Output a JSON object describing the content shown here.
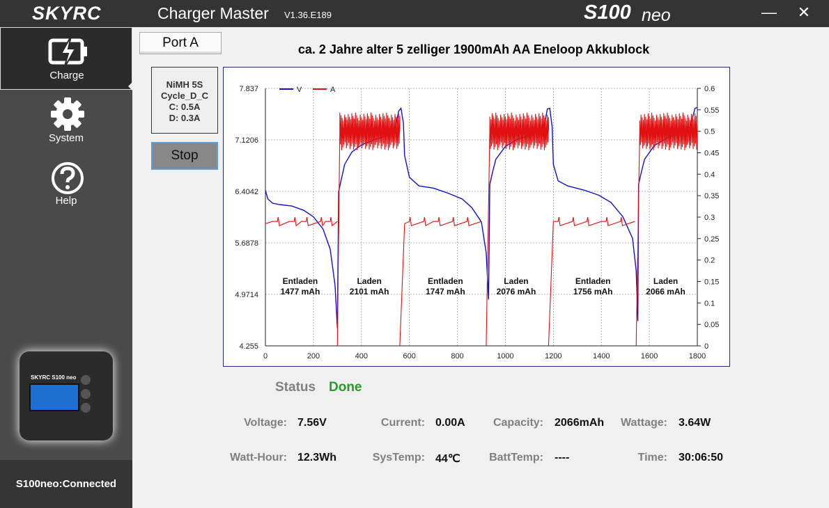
{
  "titlebar": {
    "logo": "SKYRC",
    "app_title": "Charger Master",
    "version": "V1.36.E189",
    "model_main": "S100",
    "model_suffix": "neo",
    "minimize_symbol": "—",
    "close_symbol": "✕"
  },
  "sidebar": {
    "items": [
      {
        "label": "Charge",
        "icon": "battery-charge-icon",
        "selected": true
      },
      {
        "label": "System",
        "icon": "gear-icon"
      },
      {
        "label": "Help",
        "icon": "help-icon"
      }
    ],
    "device_brand": "SKYRC S100 neo",
    "connection": "S100neo:Connected"
  },
  "main": {
    "tab": "Port A",
    "chart_title": "ca. 2 Jahre alter 5 zelliger 1900mAh AA Eneloop Akkublock",
    "program": {
      "line1": "NiMH 5S",
      "line2": "Cycle_D_C",
      "line3": "C: 0.5A",
      "line4": "D: 0.3A"
    },
    "stop_label": "Stop",
    "status_label": "Status",
    "status_value": "Done",
    "stats": [
      {
        "label": "Voltage:",
        "value": "7.56V"
      },
      {
        "label": "Current:",
        "value": "0.00A"
      },
      {
        "label": "Capacity:",
        "value": "2066mAh"
      },
      {
        "label": "Wattage:",
        "value": "3.64W"
      },
      {
        "label": "Watt-Hour:",
        "value": "12.3Wh"
      },
      {
        "label": "SysTemp:",
        "value": "44℃"
      },
      {
        "label": "BattTemp:",
        "value": "----"
      },
      {
        "label": "Time:",
        "value": "30:06:50"
      }
    ]
  },
  "chart_data": {
    "type": "line",
    "x_ticks": [
      "0",
      "200",
      "400",
      "600",
      "800",
      "1000",
      "1200",
      "1400",
      "1600",
      "1800"
    ],
    "xlim": [
      0,
      1800
    ],
    "y_left_ticks": [
      "4.255",
      "4.9714",
      "5.6878",
      "6.4042",
      "7.1206",
      "7.837"
    ],
    "y_left_lim": [
      4.255,
      7.837
    ],
    "y_right_ticks": [
      "0",
      "0.05",
      "0.1",
      "0.15",
      "0.2",
      "0.25",
      "0.3",
      "0.35",
      "0.4",
      "0.45",
      "0.5",
      "0.55",
      "0.6"
    ],
    "y_right_lim": [
      0,
      0.6
    ],
    "grid": true,
    "legend_position": "top-left",
    "series": [
      {
        "name": "V",
        "axis": "left",
        "color": "#1010d0",
        "x": [
          0,
          10,
          30,
          60,
          110,
          160,
          200,
          240,
          270,
          290,
          300,
          305,
          315,
          330,
          360,
          400,
          450,
          500,
          540,
          555,
          565,
          575,
          580,
          600,
          640,
          700,
          760,
          820,
          860,
          900,
          920,
          930,
          935,
          945,
          960,
          1000,
          1050,
          1110,
          1160,
          1175,
          1185,
          1195,
          1200,
          1220,
          1260,
          1330,
          1390,
          1440,
          1490,
          1530,
          1545,
          1552,
          1555,
          1565,
          1580,
          1620,
          1670,
          1720,
          1770,
          1790,
          1800
        ],
        "y": [
          6.42,
          6.3,
          6.24,
          6.22,
          6.2,
          6.14,
          6.05,
          5.88,
          5.6,
          5.1,
          4.5,
          6.4,
          6.55,
          6.78,
          6.95,
          7.05,
          7.12,
          7.17,
          7.25,
          7.52,
          7.56,
          7.35,
          6.9,
          6.6,
          6.48,
          6.45,
          6.38,
          6.3,
          6.18,
          5.98,
          5.55,
          4.9,
          6.5,
          6.65,
          6.85,
          7.03,
          7.13,
          7.19,
          7.28,
          7.55,
          7.56,
          7.3,
          6.78,
          6.55,
          6.48,
          6.42,
          6.35,
          6.25,
          6.05,
          5.75,
          5.3,
          4.6,
          6.5,
          6.65,
          6.85,
          7.04,
          7.14,
          7.2,
          7.3,
          7.56,
          7.57
        ]
      },
      {
        "name": "A",
        "axis": "right",
        "color": "#e01010",
        "segments": [
          {
            "x": [
              0,
              30,
              100,
              150,
              250,
              300
            ],
            "y": [
              0.285,
              0.29,
              0.29,
              0.29,
              0.29,
              0.29
            ]
          },
          {
            "x": [
              300,
              310,
              560
            ],
            "y": [
              0.0,
              0.5,
              0.5
            ]
          },
          {
            "x": [
              560,
              580,
              700,
              900
            ],
            "y": [
              0.0,
              0.285,
              0.29,
              0.29
            ]
          },
          {
            "x": [
              920,
              935,
              1180
            ],
            "y": [
              0.0,
              0.5,
              0.5
            ]
          },
          {
            "x": [
              1180,
              1200,
              1400,
              1540
            ],
            "y": [
              0.0,
              0.29,
              0.29,
              0.29
            ]
          },
          {
            "x": [
              1545,
              1560,
              1800
            ],
            "y": [
              0.0,
              0.5,
              0.5
            ]
          }
        ]
      }
    ],
    "annotations": [
      {
        "line1": "Entladen",
        "line2": "1477 mAh",
        "x": 145
      },
      {
        "line1": "Laden",
        "line2": "2101 mAh",
        "x": 433
      },
      {
        "line1": "Entladen",
        "line2": "1747 mAh",
        "x": 750
      },
      {
        "line1": "Laden",
        "line2": "2076 mAh",
        "x": 1045
      },
      {
        "line1": "Entladen",
        "line2": "1756 mAh",
        "x": 1365
      },
      {
        "line1": "Laden",
        "line2": "2066 mAh",
        "x": 1668
      }
    ]
  }
}
